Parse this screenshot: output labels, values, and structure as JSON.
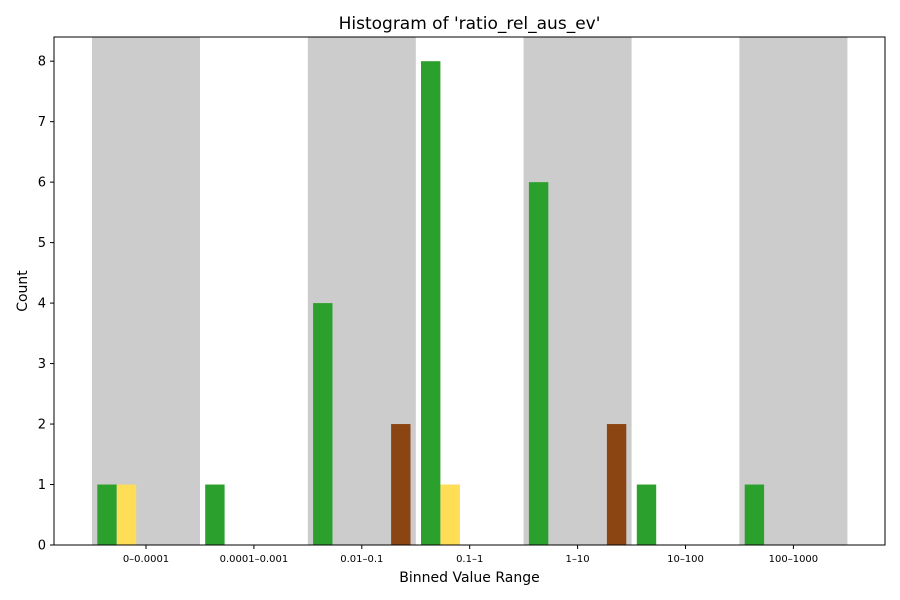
{
  "chart_data": {
    "type": "bar",
    "title": "Histogram of 'ratio_rel_aus_ev'",
    "xlabel": "Binned Value Range",
    "ylabel": "Count",
    "categories": [
      "0–0.0001",
      "0.0001–0.001",
      "0.01–0.1",
      "0.1–1",
      "1–10",
      "10–100",
      "100–1000"
    ],
    "ylim": [
      0,
      8.4
    ],
    "yticks": [
      0,
      1,
      2,
      3,
      4,
      5,
      6,
      7,
      8
    ],
    "grid": false,
    "legend": "none",
    "shaded_categories": [
      "0–0.0001",
      "0.01–0.1",
      "1–10",
      "100–1000"
    ],
    "shade_color": "#cccccc",
    "series": [
      {
        "color": "#2ca02c",
        "values": [
          1,
          1,
          4,
          8,
          6,
          1,
          1
        ]
      },
      {
        "color": "#ffdd57",
        "values": [
          1,
          0,
          0,
          1,
          0,
          0,
          0
        ]
      },
      {
        "color": "#ffdd57",
        "values": [
          0,
          0,
          0,
          0,
          0,
          0,
          0
        ]
      },
      {
        "color": "#8b4513",
        "values": [
          0,
          0,
          0,
          0,
          0,
          0,
          0
        ]
      },
      {
        "color": "#8b4513",
        "values": [
          0,
          0,
          2,
          0,
          2,
          0,
          0
        ]
      }
    ]
  }
}
